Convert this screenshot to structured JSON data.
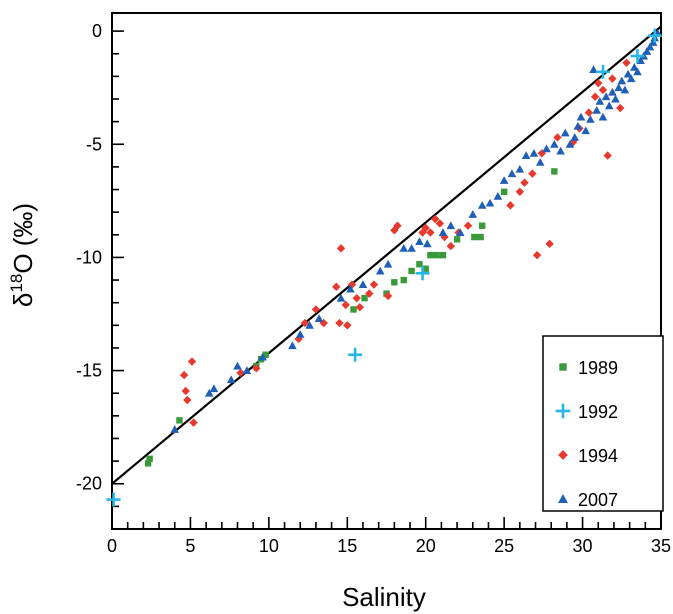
{
  "chart_data": {
    "type": "scatter",
    "xlabel": "Salinity",
    "ylabel": {
      "prefix": "δ",
      "sup": "18",
      "suffix": "O (‰)"
    },
    "xlim": [
      0,
      35
    ],
    "ylim": [
      -22,
      0.8
    ],
    "x_ticks": [
      "0",
      "5",
      "10",
      "15",
      "20",
      "25",
      "30",
      "35"
    ],
    "y_ticks": [
      "0",
      "-5",
      "-10",
      "-15",
      "-20"
    ],
    "y_tick_values": [
      0,
      -5,
      -10,
      -15,
      -20
    ],
    "grid": false,
    "legend_position": "bottom-right",
    "reference_line": {
      "type": "line",
      "x": [
        0,
        35
      ],
      "y": [
        -20.0,
        0.2
      ],
      "color": "#000000"
    },
    "series": [
      {
        "name": "1989",
        "marker": "square",
        "color": "#3a9a3a",
        "points": [
          [
            2.3,
            -19.1
          ],
          [
            2.4,
            -18.9
          ],
          [
            4.3,
            -17.2
          ],
          [
            9.2,
            -14.8
          ],
          [
            9.5,
            -14.5
          ],
          [
            9.8,
            -14.3
          ],
          [
            15.4,
            -12.3
          ],
          [
            16.1,
            -11.8
          ],
          [
            17.5,
            -11.6
          ],
          [
            18.0,
            -11.1
          ],
          [
            18.6,
            -11.0
          ],
          [
            19.1,
            -10.6
          ],
          [
            19.6,
            -10.3
          ],
          [
            20.0,
            -10.5
          ],
          [
            20.3,
            -9.9
          ],
          [
            20.7,
            -9.9
          ],
          [
            21.1,
            -9.9
          ],
          [
            22.0,
            -9.2
          ],
          [
            23.1,
            -9.1
          ],
          [
            23.5,
            -9.1
          ],
          [
            23.6,
            -8.6
          ],
          [
            25.0,
            -7.1
          ],
          [
            28.2,
            -6.2
          ]
        ]
      },
      {
        "name": "1992",
        "marker": "cross",
        "color": "#29b5e8",
        "points": [
          [
            0.1,
            -20.7
          ],
          [
            15.5,
            -14.3
          ],
          [
            19.8,
            -10.7
          ],
          [
            31.3,
            -1.8
          ],
          [
            33.5,
            -1.1
          ],
          [
            34.6,
            -0.2
          ]
        ]
      },
      {
        "name": "1994",
        "marker": "diamond",
        "color": "#e8392f",
        "points": [
          [
            4.6,
            -15.2
          ],
          [
            4.7,
            -15.9
          ],
          [
            4.8,
            -16.3
          ],
          [
            5.1,
            -14.6
          ],
          [
            5.2,
            -17.3
          ],
          [
            8.2,
            -15.1
          ],
          [
            9.2,
            -14.9
          ],
          [
            11.9,
            -13.6
          ],
          [
            12.3,
            -12.9
          ],
          [
            13.0,
            -12.3
          ],
          [
            13.5,
            -12.9
          ],
          [
            14.3,
            -11.3
          ],
          [
            14.5,
            -12.9
          ],
          [
            14.6,
            -9.6
          ],
          [
            14.9,
            -12.1
          ],
          [
            15.0,
            -13.0
          ],
          [
            15.3,
            -11.2
          ],
          [
            15.6,
            -11.8
          ],
          [
            15.8,
            -12.2
          ],
          [
            16.4,
            -11.6
          ],
          [
            16.7,
            -11.2
          ],
          [
            17.6,
            -11.7
          ],
          [
            18.0,
            -8.8
          ],
          [
            18.2,
            -8.6
          ],
          [
            19.8,
            -8.9
          ],
          [
            20.0,
            -8.7
          ],
          [
            20.3,
            -8.9
          ],
          [
            20.6,
            -8.3
          ],
          [
            20.9,
            -8.5
          ],
          [
            21.2,
            -9.1
          ],
          [
            21.6,
            -9.5
          ],
          [
            22.1,
            -8.9
          ],
          [
            22.7,
            -8.6
          ],
          [
            25.4,
            -7.7
          ],
          [
            26.0,
            -7.1
          ],
          [
            26.3,
            -6.7
          ],
          [
            26.8,
            -6.3
          ],
          [
            27.1,
            -9.9
          ],
          [
            27.4,
            -5.4
          ],
          [
            27.9,
            -9.4
          ],
          [
            28.4,
            -4.7
          ],
          [
            29.4,
            -4.9
          ],
          [
            29.8,
            -4.3
          ],
          [
            30.4,
            -3.6
          ],
          [
            30.8,
            -2.9
          ],
          [
            31.0,
            -2.3
          ],
          [
            31.3,
            -2.6
          ],
          [
            31.6,
            -5.5
          ],
          [
            31.9,
            -2.1
          ],
          [
            32.4,
            -3.4
          ],
          [
            32.8,
            -1.4
          ]
        ]
      },
      {
        "name": "2007",
        "marker": "triangle",
        "color": "#1f5fb5",
        "points": [
          [
            4.0,
            -17.6
          ],
          [
            6.2,
            -16.0
          ],
          [
            6.5,
            -15.8
          ],
          [
            7.6,
            -15.4
          ],
          [
            8.0,
            -14.8
          ],
          [
            8.6,
            -15.0
          ],
          [
            9.6,
            -14.4
          ],
          [
            11.5,
            -13.9
          ],
          [
            12.0,
            -13.4
          ],
          [
            12.6,
            -13.0
          ],
          [
            13.2,
            -12.7
          ],
          [
            14.6,
            -11.8
          ],
          [
            15.2,
            -11.4
          ],
          [
            16.0,
            -11.2
          ],
          [
            17.1,
            -10.6
          ],
          [
            17.6,
            -10.3
          ],
          [
            18.6,
            -9.6
          ],
          [
            19.1,
            -9.6
          ],
          [
            19.6,
            -9.3
          ],
          [
            20.1,
            -9.4
          ],
          [
            21.1,
            -8.9
          ],
          [
            21.6,
            -8.6
          ],
          [
            22.2,
            -8.9
          ],
          [
            23.0,
            -8.1
          ],
          [
            23.6,
            -7.7
          ],
          [
            24.1,
            -7.6
          ],
          [
            24.6,
            -7.3
          ],
          [
            25.0,
            -6.6
          ],
          [
            25.5,
            -6.3
          ],
          [
            26.0,
            -6.1
          ],
          [
            26.4,
            -5.5
          ],
          [
            26.9,
            -5.4
          ],
          [
            27.3,
            -5.8
          ],
          [
            27.7,
            -5.2
          ],
          [
            28.2,
            -5.0
          ],
          [
            28.6,
            -5.3
          ],
          [
            28.9,
            -4.5
          ],
          [
            29.2,
            -5.0
          ],
          [
            29.5,
            -4.7
          ],
          [
            29.7,
            -4.2
          ],
          [
            29.9,
            -3.8
          ],
          [
            30.2,
            -4.4
          ],
          [
            30.5,
            -3.9
          ],
          [
            30.7,
            -1.7
          ],
          [
            30.9,
            -3.5
          ],
          [
            31.1,
            -3.1
          ],
          [
            31.3,
            -3.8
          ],
          [
            31.5,
            -2.9
          ],
          [
            31.7,
            -3.3
          ],
          [
            31.9,
            -2.7
          ],
          [
            32.1,
            -3.0
          ],
          [
            32.3,
            -2.5
          ],
          [
            32.5,
            -2.2
          ],
          [
            32.7,
            -2.6
          ],
          [
            32.9,
            -1.9
          ],
          [
            33.1,
            -2.1
          ],
          [
            33.3,
            -1.6
          ],
          [
            33.5,
            -1.8
          ],
          [
            33.7,
            -1.3
          ],
          [
            33.9,
            -1.1
          ],
          [
            34.1,
            -0.9
          ],
          [
            34.3,
            -0.7
          ],
          [
            34.5,
            -0.5
          ],
          [
            34.6,
            -0.3
          ],
          [
            34.8,
            -0.1
          ]
        ]
      }
    ]
  }
}
